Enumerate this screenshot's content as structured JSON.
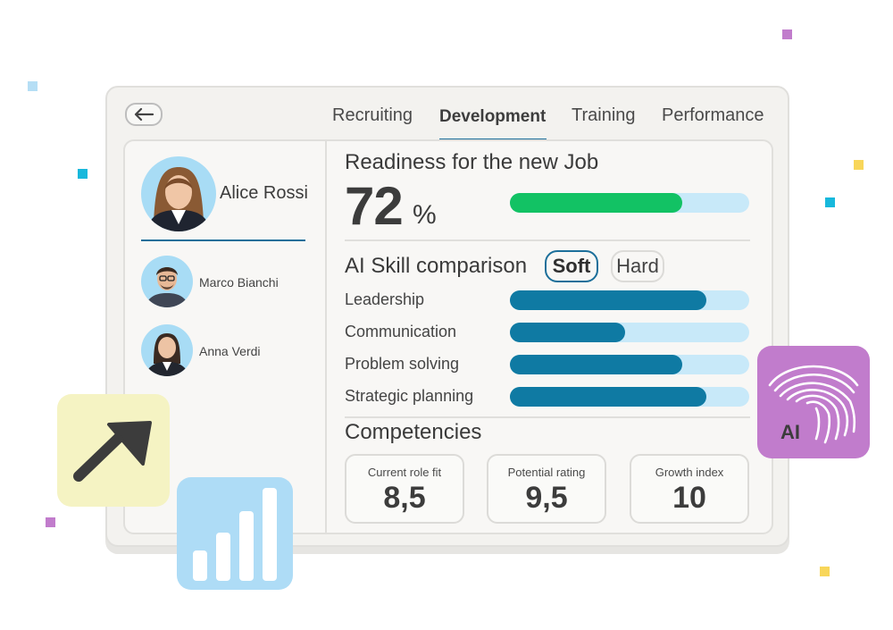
{
  "nav": {
    "tabs": [
      {
        "label": "Recruiting",
        "active": false
      },
      {
        "label": "Development",
        "active": true
      },
      {
        "label": "Training",
        "active": false
      },
      {
        "label": "Performance",
        "active": false
      }
    ]
  },
  "people": {
    "selected": {
      "name": "Alice Rossi"
    },
    "others": [
      {
        "name": "Marco Bianchi"
      },
      {
        "name": "Anna Verdi"
      }
    ]
  },
  "readiness": {
    "title": "Readiness for the new Job",
    "value": "72",
    "unit": "%",
    "progress": 0.72
  },
  "skills": {
    "title": "AI Skill comparison",
    "toggle": {
      "soft": "Soft",
      "hard": "Hard",
      "selected": "Soft"
    },
    "items": [
      {
        "label": "Leadership",
        "level": 0.82
      },
      {
        "label": "Communication",
        "level": 0.48
      },
      {
        "label": "Problem solving",
        "level": 0.72
      },
      {
        "label": "Strategic planning",
        "level": 0.82
      }
    ]
  },
  "competencies": {
    "title": "Competencies",
    "cards": [
      {
        "label": "Current role fit",
        "value": "8,5"
      },
      {
        "label": "Potential rating",
        "value": "9,5"
      },
      {
        "label": "Growth index",
        "value": "10"
      }
    ]
  },
  "ai_badge": {
    "label": "AI"
  },
  "colors": {
    "accent": "#1c6f9a",
    "skill_fill": "#0f7aa3",
    "readiness_fill": "#12c264",
    "track": "#c8e9f9",
    "ai_tile": "#c17ccc",
    "growth_tile": "#f5f3c3",
    "chart_tile": "#aedcf6"
  }
}
